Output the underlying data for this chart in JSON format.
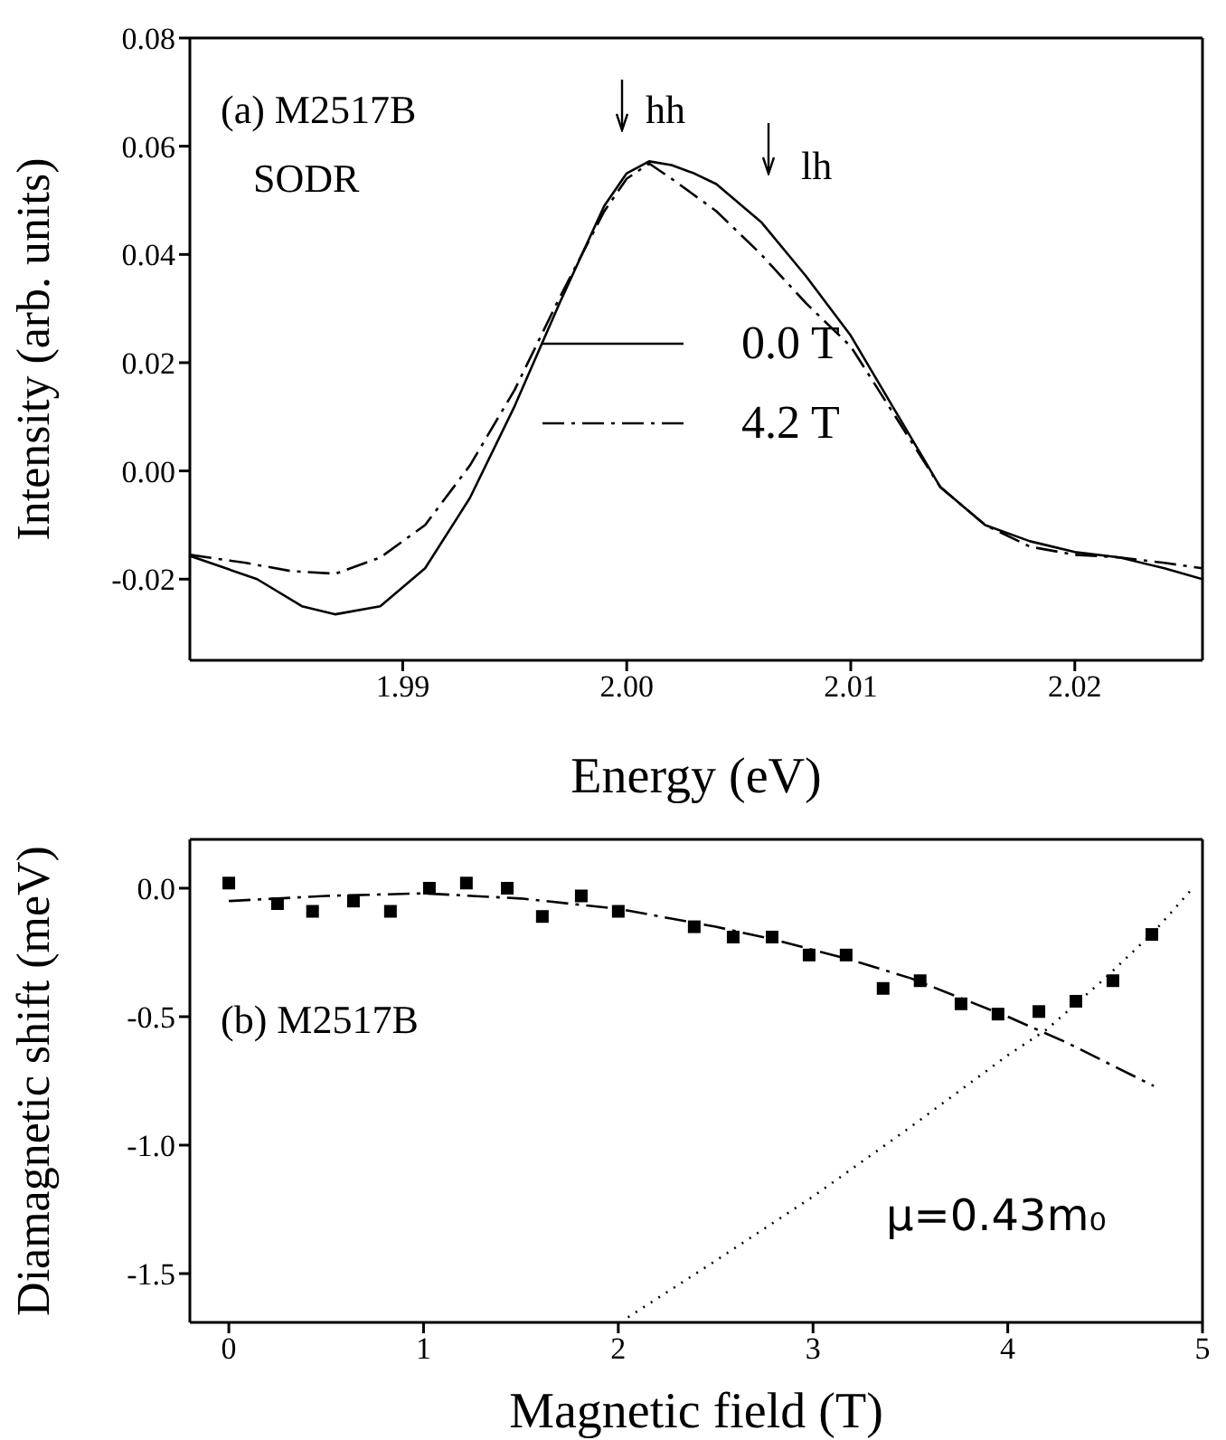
{
  "chart_data": [
    {
      "type": "line",
      "xlabel": "Energy (eV)",
      "ylabel": "Intensity (arb. units)",
      "xlim": [
        1.9805,
        2.0257
      ],
      "xticks": [
        1.99,
        {
          "value": 2.0,
          "label": "2.00"
        },
        2.01,
        2.02
      ],
      "ylim": [
        -0.035,
        0.08
      ],
      "yticks": [
        -0.02,
        {
          "value": 0,
          "label": "0.00"
        },
        0.02,
        0.04,
        0.06,
        0.08
      ],
      "legend": "center",
      "series": [
        {
          "name": "0.0 T",
          "color": "#000000",
          "line_style": "solid",
          "x": [
            1.9805,
            1.9835,
            1.9855,
            1.987,
            1.989,
            1.991,
            1.993,
            1.995,
            1.997,
            1.999,
            2.0,
            2.001,
            2.002,
            2.003,
            2.004,
            2.006,
            2.008,
            2.01,
            2.012,
            2.014,
            2.016,
            2.018,
            2.02,
            2.022,
            2.024,
            2.0257
          ],
          "values": [
            -0.0157,
            -0.02,
            -0.025,
            -0.0265,
            -0.025,
            -0.018,
            -0.005,
            0.012,
            0.031,
            0.049,
            0.055,
            0.0572,
            0.0565,
            0.055,
            0.053,
            0.046,
            0.036,
            0.025,
            0.011,
            -0.003,
            -0.01,
            -0.013,
            -0.015,
            -0.016,
            -0.018,
            -0.02
          ]
        },
        {
          "name": "4.2 T",
          "color": "#000000",
          "line_style": "dashed",
          "x": [
            1.9805,
            1.983,
            1.985,
            1.987,
            1.989,
            1.991,
            1.993,
            1.995,
            1.997,
            1.999,
            2.0,
            2.001,
            2.002,
            2.004,
            2.006,
            2.008,
            2.01,
            2.012,
            2.014,
            2.016,
            2.018,
            2.02,
            2.022,
            2.024,
            2.0257
          ],
          "values": [
            -0.0155,
            -0.017,
            -0.0185,
            -0.019,
            -0.016,
            -0.01,
            0.001,
            0.015,
            0.032,
            0.048,
            0.054,
            0.0568,
            0.054,
            0.048,
            0.04,
            0.031,
            0.023,
            0.01,
            -0.003,
            -0.01,
            -0.014,
            -0.0155,
            -0.016,
            -0.017,
            -0.018
          ]
        }
      ],
      "annotations": [
        "(a) M2517B",
        "SODR",
        "hh",
        "lh"
      ]
    },
    {
      "type": "scatter",
      "xlabel": "Magnetic field (T)",
      "ylabel": "Diamagnetic shift (meV)",
      "xlim": [
        -0.2,
        5
      ],
      "xticks": [
        0,
        1,
        2,
        3,
        4,
        5
      ],
      "ylim": [
        -1.69,
        0.19
      ],
      "yticks": [
        {
          "value": -1.5,
          "label": "-1.5"
        },
        {
          "value": -1,
          "label": "-1.0"
        },
        {
          "value": -0.5,
          "label": "-0.5"
        },
        {
          "value": 0,
          "label": "0.0"
        }
      ],
      "series": [
        {
          "marker": "square",
          "color": "#000000",
          "x": [
            0,
            0.25,
            0.43,
            0.64,
            0.83,
            1.03,
            1.22,
            1.43,
            1.61,
            1.81,
            2.0,
            2.39,
            2.59,
            2.79,
            2.98,
            3.17,
            3.36,
            3.55,
            3.76,
            3.95,
            4.16,
            4.35,
            4.54,
            4.74
          ],
          "values": [
            0.02,
            -0.06,
            -0.09,
            -0.05,
            -0.09,
            0.0,
            0.02,
            0.0,
            -0.11,
            -0.03,
            -0.09,
            -0.15,
            -0.19,
            -0.19,
            -0.26,
            -0.26,
            -0.39,
            -0.36,
            -0.45,
            -0.49,
            -0.48,
            -0.44,
            -0.36,
            -0.18
          ]
        },
        {
          "type": "line",
          "color": "#000000",
          "line_style": "dashed",
          "x": [
            0,
            0.5,
            1,
            1.5,
            2,
            2.5,
            2.8,
            3.2,
            3.5,
            4.0,
            4.3,
            4.75
          ],
          "values": [
            -0.05,
            -0.03,
            -0.02,
            -0.04,
            -0.08,
            -0.15,
            -0.2,
            -0.28,
            -0.35,
            -0.5,
            -0.6,
            -0.77
          ]
        },
        {
          "type": "line",
          "color": "#000000",
          "line_style": "dotted",
          "x": [
            2.05,
            2.5,
            3.0,
            3.5,
            4.0,
            4.2,
            4.5,
            4.75,
            4.95
          ],
          "values": [
            -1.67,
            -1.45,
            -1.2,
            -0.93,
            -0.65,
            -0.55,
            -0.35,
            -0.17,
            0.0
          ]
        }
      ],
      "annotations": [
        "(b) M2517B",
        "μ=0.43m₀"
      ]
    }
  ]
}
